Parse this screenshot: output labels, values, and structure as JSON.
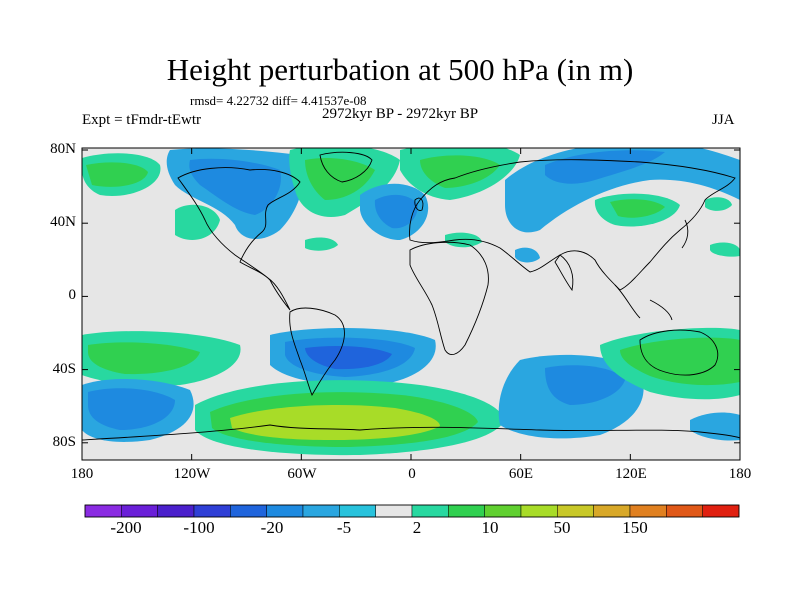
{
  "title": "Height perturbation at 500 hPa (in m)",
  "stats": "rmsd= 4.22732 diff= 4.41537e-08",
  "experiment": "Expt = tFmdr-tEwtr",
  "period": "2972kyr BP - 2972kyr BP",
  "season": "JJA",
  "lat_ticks": [
    "80N",
    "40N",
    "0",
    "40S",
    "80S"
  ],
  "lon_ticks": [
    "180",
    "120W",
    "60W",
    "0",
    "60E",
    "120E",
    "180"
  ],
  "colorbar": {
    "colors": [
      "#8a2be2",
      "#6a1fd8",
      "#4b20cc",
      "#2f3fd6",
      "#1f64dc",
      "#1e8ae0",
      "#2aa6e0",
      "#28c2dc",
      "#e6e6e6",
      "#28d8a0",
      "#30d050",
      "#60d030",
      "#a8dc28",
      "#c8c828",
      "#d8a828",
      "#e08020",
      "#e05818",
      "#e02010"
    ],
    "labels": [
      "-200",
      "-100",
      "-20",
      "-5",
      "2",
      "10",
      "50",
      "150"
    ]
  },
  "map_colors": {
    "background": "#e6e6e6",
    "neg_weak": "#2aa6e0",
    "neg_mid": "#1e8ae0",
    "neg_strong": "#1f64dc",
    "pos_weak": "#28d8a0",
    "pos_mid": "#30d050",
    "pos_strong": "#a8dc28",
    "coast": "#000000"
  }
}
